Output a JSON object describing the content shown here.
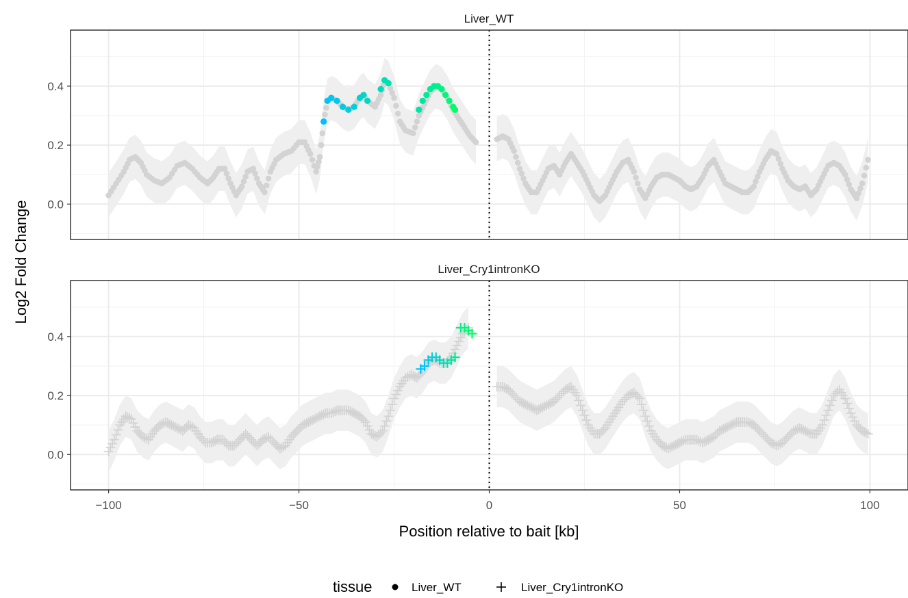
{
  "chart_data": {
    "type": "scatter",
    "facets": [
      "Liver_WT",
      "Liver_Cry1intronKO"
    ],
    "xlabel": "Position relative to bait [kb]",
    "ylabel": "Log2 Fold Change",
    "xlim": [
      -110,
      110
    ],
    "ylim": [
      -0.12,
      0.59
    ],
    "x_ticks": [
      -100,
      -50,
      0,
      50,
      100
    ],
    "x_tick_labels": [
      "−100",
      "−50",
      "0",
      "50",
      "100"
    ],
    "y_ticks": [
      0.0,
      0.2,
      0.4
    ],
    "y_tick_labels": [
      "0.0",
      "0.2",
      "0.4"
    ],
    "bait_line_x": 0,
    "legend": {
      "title": "tissue",
      "position": "bottom",
      "entries": [
        {
          "label": "Liver_WT",
          "shape": "circle"
        },
        {
          "label": "Liver_Cry1intronKO",
          "shape": "plus"
        }
      ]
    },
    "colors": {
      "background_points": "#d3d3d3",
      "ribbon": "#ebebeb",
      "grid": "#ebebeb",
      "highlight_low": "#00bfff",
      "highlight_high": "#00ff66"
    },
    "series": [
      {
        "name": "Liver_WT",
        "shape": "circle",
        "ribbon_halfwidth": 0.075,
        "segments": [
          [
            -100,
            0.03
          ],
          [
            -98,
            0.07
          ],
          [
            -96,
            0.11
          ],
          [
            -94.5,
            0.15
          ],
          [
            -93,
            0.16
          ],
          [
            -91.5,
            0.14
          ],
          [
            -90,
            0.1
          ],
          [
            -88,
            0.08
          ],
          [
            -86,
            0.07
          ],
          [
            -84,
            0.09
          ],
          [
            -82,
            0.13
          ],
          [
            -80,
            0.14
          ],
          [
            -78,
            0.12
          ],
          [
            -76,
            0.09
          ],
          [
            -74,
            0.07
          ],
          [
            -72.5,
            0.09
          ],
          [
            -71,
            0.12
          ],
          [
            -69.5,
            0.12
          ],
          [
            -68,
            0.07
          ],
          [
            -66.5,
            0.03
          ],
          [
            -65,
            0.06
          ],
          [
            -63.5,
            0.11
          ],
          [
            -62,
            0.12
          ],
          [
            -60.5,
            0.07
          ],
          [
            -59,
            0.04
          ],
          [
            -57.5,
            0.11
          ],
          [
            -56,
            0.15
          ],
          [
            -54,
            0.17
          ],
          [
            -52,
            0.18
          ],
          [
            -50,
            0.21
          ],
          [
            -48.5,
            0.21
          ],
          [
            -47,
            0.17
          ],
          [
            -45.5,
            0.11
          ],
          [
            -44.5,
            0.16
          ],
          [
            -43.5,
            0.28
          ],
          [
            -42.5,
            0.35
          ],
          [
            -41.5,
            0.36
          ],
          [
            -40,
            0.35
          ],
          [
            -38.5,
            0.33
          ],
          [
            -37,
            0.32
          ],
          [
            -35.5,
            0.33
          ],
          [
            -34,
            0.36
          ],
          [
            -33,
            0.37
          ],
          [
            -32,
            0.35
          ],
          [
            -30,
            0.33
          ],
          [
            -28.5,
            0.37
          ],
          [
            -27.5,
            0.42
          ],
          [
            -26.5,
            0.41
          ],
          [
            -25,
            0.36
          ],
          [
            -23.5,
            0.28
          ],
          [
            -22,
            0.25
          ],
          [
            -20,
            0.24
          ],
          [
            -18.5,
            0.3
          ],
          [
            -17,
            0.34
          ],
          [
            -15.5,
            0.38
          ],
          [
            -14,
            0.4
          ],
          [
            -12.5,
            0.39
          ],
          [
            -11,
            0.36
          ],
          [
            -9.5,
            0.32
          ],
          [
            -8,
            0.29
          ],
          [
            -6.5,
            0.26
          ],
          [
            -5,
            0.23
          ],
          [
            -3.5,
            0.21
          ],
          null,
          [
            2,
            0.22
          ],
          [
            3.5,
            0.23
          ],
          [
            5,
            0.22
          ],
          [
            6.5,
            0.18
          ],
          [
            8,
            0.12
          ],
          [
            9.5,
            0.07
          ],
          [
            11,
            0.04
          ],
          [
            12.5,
            0.04
          ],
          [
            14,
            0.08
          ],
          [
            15.5,
            0.12
          ],
          [
            17,
            0.13
          ],
          [
            18.5,
            0.1
          ],
          [
            20,
            0.14
          ],
          [
            21.5,
            0.17
          ],
          [
            23,
            0.14
          ],
          [
            24.5,
            0.11
          ],
          [
            26,
            0.07
          ],
          [
            27.5,
            0.03
          ],
          [
            29,
            0.01
          ],
          [
            30.5,
            0.03
          ],
          [
            32,
            0.07
          ],
          [
            33.5,
            0.11
          ],
          [
            35,
            0.14
          ],
          [
            36.5,
            0.15
          ],
          [
            38,
            0.11
          ],
          [
            39.5,
            0.05
          ],
          [
            41,
            0.02
          ],
          [
            42.5,
            0.06
          ],
          [
            44,
            0.09
          ],
          [
            45.5,
            0.1
          ],
          [
            47,
            0.1
          ],
          [
            48.5,
            0.09
          ],
          [
            50,
            0.08
          ],
          [
            51.5,
            0.06
          ],
          [
            53,
            0.05
          ],
          [
            54.5,
            0.06
          ],
          [
            56,
            0.09
          ],
          [
            57.5,
            0.13
          ],
          [
            59,
            0.15
          ],
          [
            60.5,
            0.11
          ],
          [
            62,
            0.07
          ],
          [
            63.5,
            0.06
          ],
          [
            65,
            0.05
          ],
          [
            66.5,
            0.04
          ],
          [
            68,
            0.04
          ],
          [
            69.5,
            0.06
          ],
          [
            71,
            0.11
          ],
          [
            72.5,
            0.15
          ],
          [
            74,
            0.18
          ],
          [
            75.5,
            0.17
          ],
          [
            77,
            0.12
          ],
          [
            78.5,
            0.08
          ],
          [
            80,
            0.06
          ],
          [
            81.5,
            0.05
          ],
          [
            83,
            0.06
          ],
          [
            84.5,
            0.03
          ],
          [
            86,
            0.05
          ],
          [
            87.5,
            0.09
          ],
          [
            89,
            0.13
          ],
          [
            90.5,
            0.14
          ],
          [
            92,
            0.13
          ],
          [
            93.5,
            0.1
          ],
          [
            95,
            0.05
          ],
          [
            96.5,
            0.02
          ],
          [
            98,
            0.07
          ],
          [
            99.5,
            0.15
          ]
        ],
        "highlight": [
          [
            -43.5,
            0.28
          ],
          [
            -42.5,
            0.35
          ],
          [
            -41.5,
            0.36
          ],
          [
            -40,
            0.35
          ],
          [
            -38.5,
            0.33
          ],
          [
            -37,
            0.32
          ],
          [
            -35.5,
            0.33
          ],
          [
            -34,
            0.36
          ],
          [
            -33,
            0.37
          ],
          [
            -32,
            0.35
          ],
          [
            -28.5,
            0.39
          ],
          [
            -27.5,
            0.42
          ],
          [
            -26.5,
            0.41
          ],
          [
            -18.5,
            0.32
          ],
          [
            -17.5,
            0.35
          ],
          [
            -16.5,
            0.37
          ],
          [
            -15.5,
            0.39
          ],
          [
            -14.5,
            0.4
          ],
          [
            -13.5,
            0.4
          ],
          [
            -12.5,
            0.39
          ],
          [
            -11.5,
            0.37
          ],
          [
            -10.5,
            0.35
          ],
          [
            -9.5,
            0.33
          ],
          [
            -9,
            0.32
          ]
        ]
      },
      {
        "name": "Liver_Cry1intronKO",
        "shape": "plus",
        "ribbon_halfwidth": 0.07,
        "segments": [
          [
            -100,
            0.01
          ],
          [
            -98.5,
            0.05
          ],
          [
            -97,
            0.1
          ],
          [
            -95.5,
            0.13
          ],
          [
            -94,
            0.12
          ],
          [
            -92.5,
            0.08
          ],
          [
            -91,
            0.06
          ],
          [
            -89.5,
            0.05
          ],
          [
            -88,
            0.08
          ],
          [
            -86.5,
            0.1
          ],
          [
            -85,
            0.11
          ],
          [
            -83.5,
            0.1
          ],
          [
            -82,
            0.09
          ],
          [
            -80.5,
            0.08
          ],
          [
            -79,
            0.1
          ],
          [
            -77.5,
            0.09
          ],
          [
            -76,
            0.06
          ],
          [
            -74.5,
            0.04
          ],
          [
            -73,
            0.04
          ],
          [
            -71.5,
            0.05
          ],
          [
            -70,
            0.05
          ],
          [
            -68.5,
            0.03
          ],
          [
            -67,
            0.03
          ],
          [
            -65.5,
            0.05
          ],
          [
            -64,
            0.07
          ],
          [
            -62.5,
            0.05
          ],
          [
            -61,
            0.03
          ],
          [
            -59.5,
            0.05
          ],
          [
            -58,
            0.06
          ],
          [
            -56.5,
            0.04
          ],
          [
            -55,
            0.02
          ],
          [
            -53.5,
            0.03
          ],
          [
            -52,
            0.06
          ],
          [
            -50.5,
            0.08
          ],
          [
            -49,
            0.1
          ],
          [
            -47.5,
            0.11
          ],
          [
            -46,
            0.12
          ],
          [
            -44.5,
            0.13
          ],
          [
            -43,
            0.14
          ],
          [
            -41.5,
            0.14
          ],
          [
            -40,
            0.15
          ],
          [
            -38.5,
            0.15
          ],
          [
            -37,
            0.15
          ],
          [
            -35.5,
            0.14
          ],
          [
            -34,
            0.13
          ],
          [
            -32.5,
            0.11
          ],
          [
            -31,
            0.07
          ],
          [
            -29.5,
            0.06
          ],
          [
            -28,
            0.08
          ],
          [
            -26.5,
            0.13
          ],
          [
            -25,
            0.19
          ],
          [
            -23.5,
            0.23
          ],
          [
            -22,
            0.26
          ],
          [
            -20.5,
            0.27
          ],
          [
            -19,
            0.26
          ],
          [
            -17.5,
            0.28
          ],
          [
            -16,
            0.31
          ],
          [
            -14.5,
            0.32
          ],
          [
            -13,
            0.31
          ],
          [
            -11.5,
            0.31
          ],
          [
            -10,
            0.33
          ],
          [
            -8.5,
            0.37
          ],
          [
            -7,
            0.41
          ],
          [
            -5.5,
            0.43
          ],
          null,
          [
            2,
            0.23
          ],
          [
            3.5,
            0.23
          ],
          [
            5,
            0.22
          ],
          [
            6.5,
            0.2
          ],
          [
            8,
            0.18
          ],
          [
            9.5,
            0.17
          ],
          [
            11,
            0.16
          ],
          [
            12.5,
            0.15
          ],
          [
            14,
            0.16
          ],
          [
            15.5,
            0.17
          ],
          [
            17,
            0.18
          ],
          [
            18.5,
            0.2
          ],
          [
            20,
            0.22
          ],
          [
            21.5,
            0.23
          ],
          [
            23,
            0.2
          ],
          [
            24.5,
            0.15
          ],
          [
            26,
            0.1
          ],
          [
            27.5,
            0.07
          ],
          [
            29,
            0.07
          ],
          [
            30.5,
            0.09
          ],
          [
            32,
            0.12
          ],
          [
            33.5,
            0.15
          ],
          [
            35,
            0.18
          ],
          [
            36.5,
            0.2
          ],
          [
            38,
            0.21
          ],
          [
            39.5,
            0.19
          ],
          [
            41,
            0.13
          ],
          [
            42.5,
            0.08
          ],
          [
            44,
            0.05
          ],
          [
            45.5,
            0.03
          ],
          [
            47,
            0.02
          ],
          [
            48.5,
            0.03
          ],
          [
            50,
            0.04
          ],
          [
            51.5,
            0.05
          ],
          [
            53,
            0.05
          ],
          [
            54.5,
            0.05
          ],
          [
            56,
            0.04
          ],
          [
            57.5,
            0.05
          ],
          [
            59,
            0.06
          ],
          [
            60.5,
            0.08
          ],
          [
            62,
            0.09
          ],
          [
            63.5,
            0.1
          ],
          [
            65,
            0.11
          ],
          [
            66.5,
            0.11
          ],
          [
            68,
            0.11
          ],
          [
            69.5,
            0.1
          ],
          [
            71,
            0.08
          ],
          [
            72.5,
            0.06
          ],
          [
            74,
            0.04
          ],
          [
            75.5,
            0.03
          ],
          [
            77,
            0.04
          ],
          [
            78.5,
            0.06
          ],
          [
            80,
            0.08
          ],
          [
            81.5,
            0.09
          ],
          [
            83,
            0.08
          ],
          [
            84.5,
            0.07
          ],
          [
            86,
            0.07
          ],
          [
            87.5,
            0.1
          ],
          [
            89,
            0.15
          ],
          [
            90.5,
            0.2
          ],
          [
            92,
            0.22
          ],
          [
            93.5,
            0.19
          ],
          [
            95,
            0.14
          ],
          [
            96.5,
            0.1
          ],
          [
            98,
            0.08
          ],
          [
            99.5,
            0.07
          ]
        ],
        "highlight": [
          [
            -18,
            0.29
          ],
          [
            -17,
            0.3
          ],
          [
            -16,
            0.32
          ],
          [
            -15,
            0.33
          ],
          [
            -14,
            0.33
          ],
          [
            -13,
            0.32
          ],
          [
            -12,
            0.31
          ],
          [
            -11,
            0.31
          ],
          [
            -10,
            0.32
          ],
          [
            -9,
            0.33
          ],
          [
            -7.5,
            0.43
          ],
          [
            -6.5,
            0.43
          ],
          [
            -5.5,
            0.42
          ],
          [
            -4.5,
            0.41
          ]
        ]
      }
    ]
  }
}
